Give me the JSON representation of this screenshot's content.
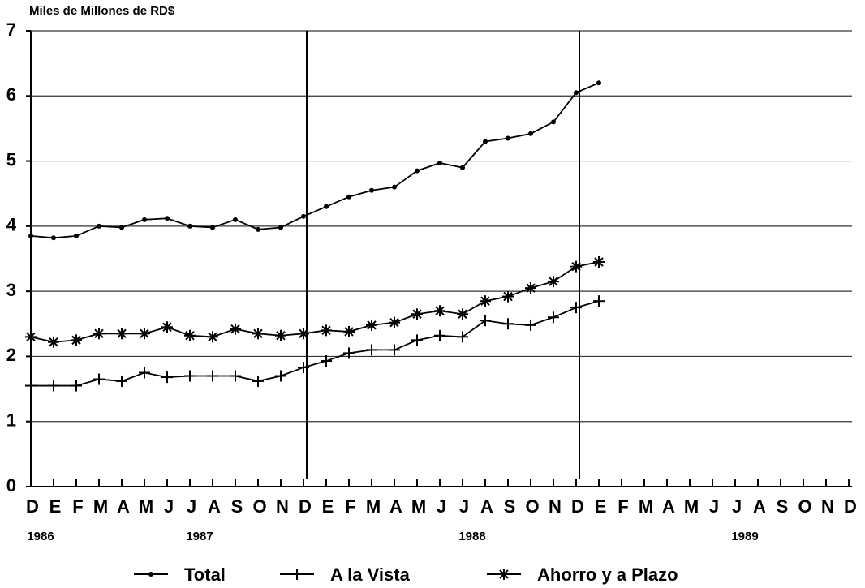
{
  "chart_data": {
    "type": "line",
    "title": "Miles de Millones de RD$",
    "categories": [
      "D",
      "E",
      "F",
      "M",
      "A",
      "M",
      "J",
      "J",
      "A",
      "S",
      "O",
      "N",
      "D",
      "E",
      "F",
      "M",
      "A",
      "M",
      "J",
      "J",
      "A",
      "S",
      "O",
      "N",
      "D",
      "E",
      "F",
      "M",
      "A",
      "M",
      "J",
      "J",
      "A",
      "S",
      "O",
      "N",
      "D"
    ],
    "year_labels": [
      "1986",
      null,
      null,
      null,
      null,
      null,
      null,
      "1987",
      null,
      null,
      null,
      null,
      null,
      null,
      null,
      null,
      null,
      null,
      null,
      "1988",
      null,
      null,
      null,
      null,
      null,
      null,
      null,
      null,
      null,
      null,
      null,
      "1989",
      null,
      null,
      null,
      null,
      null
    ],
    "series": [
      {
        "name": "Total",
        "color": "#000000",
        "marker": "dot",
        "values": [
          3.85,
          3.82,
          3.85,
          4.0,
          3.98,
          4.1,
          4.12,
          4.0,
          3.98,
          4.1,
          3.95,
          3.98,
          4.15,
          4.3,
          4.45,
          4.55,
          4.6,
          4.85,
          4.97,
          4.9,
          5.3,
          5.35,
          5.42,
          5.6,
          6.05,
          6.2,
          null,
          null,
          null,
          null,
          null,
          null,
          null,
          null,
          null,
          null,
          null
        ]
      },
      {
        "name": "A la Vista",
        "color": "#000000",
        "marker": "plus",
        "values": [
          1.55,
          1.55,
          1.55,
          1.65,
          1.62,
          1.75,
          1.68,
          1.7,
          1.7,
          1.7,
          1.62,
          1.7,
          1.83,
          1.93,
          2.05,
          2.1,
          2.1,
          2.25,
          2.32,
          2.3,
          2.55,
          2.5,
          2.48,
          2.6,
          2.75,
          2.85,
          null,
          null,
          null,
          null,
          null,
          null,
          null,
          null,
          null,
          null,
          null
        ]
      },
      {
        "name": "Ahorro y a Plazo",
        "color": "#000000",
        "marker": "asterisk",
        "values": [
          2.3,
          2.22,
          2.25,
          2.35,
          2.35,
          2.35,
          2.45,
          2.32,
          2.3,
          2.42,
          2.35,
          2.32,
          2.35,
          2.4,
          2.38,
          2.48,
          2.52,
          2.65,
          2.7,
          2.65,
          2.85,
          2.92,
          3.05,
          3.15,
          3.38,
          3.45,
          null,
          null,
          null,
          null,
          null,
          null,
          null,
          null,
          null,
          null,
          null
        ]
      }
    ],
    "ylim": [
      0,
      7
    ],
    "yticks": [
      0,
      1,
      2,
      3,
      4,
      5,
      6,
      7
    ],
    "grid": true,
    "legend": "bottom"
  }
}
